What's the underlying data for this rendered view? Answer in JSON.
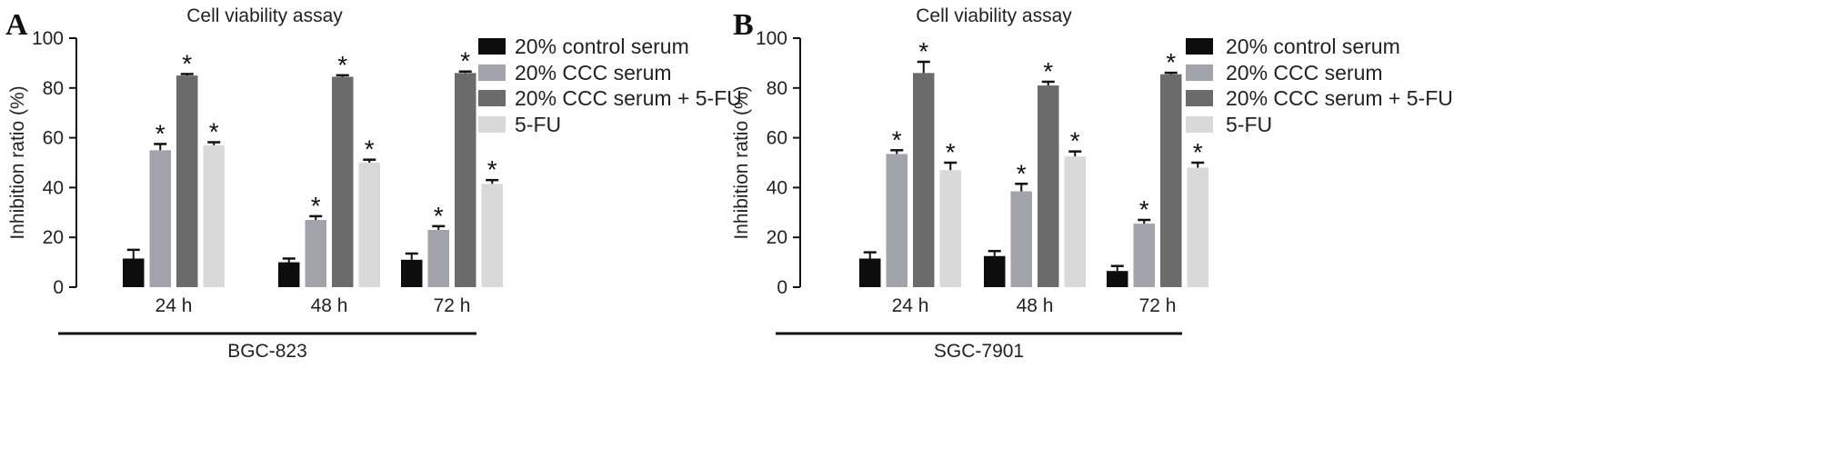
{
  "figure_name": "cell-viability-figure",
  "colors": {
    "20% control serum": "#0d0d0d",
    "20% CCC serum": "#a3a3ab",
    "20% CCC serum + 5-FU": "#6b6b6b",
    "5-FU": "#d9d9d9"
  },
  "chart_data": [
    {
      "type": "bar",
      "panel": "A",
      "title": "Cell viability assay",
      "xlabel": "BGC-823",
      "ylabel": "Inhibition ratio (%)",
      "ylim": [
        0,
        100
      ],
      "yticks": [
        0,
        20,
        40,
        60,
        80,
        100
      ],
      "categories": [
        "24 h",
        "48 h",
        "72 h"
      ],
      "legend_position": "right",
      "series": [
        {
          "name": "20% control serum",
          "values": [
            11.5,
            10,
            11
          ],
          "errors": [
            3.5,
            1.5,
            2.5
          ],
          "significant": [
            false,
            false,
            false
          ]
        },
        {
          "name": "20% CCC serum",
          "values": [
            55,
            27,
            23
          ],
          "errors": [
            2.5,
            1.5,
            1.5
          ],
          "significant": [
            true,
            true,
            true
          ]
        },
        {
          "name": "20% CCC serum + 5-FU",
          "values": [
            85,
            84.5,
            86
          ],
          "errors": [
            0.6,
            0.6,
            0.6
          ],
          "significant": [
            true,
            true,
            true
          ]
        },
        {
          "name": "5-FU",
          "values": [
            57,
            50,
            41.5
          ],
          "errors": [
            1.2,
            1.2,
            1.5
          ],
          "significant": [
            true,
            true,
            true
          ]
        }
      ]
    },
    {
      "type": "bar",
      "panel": "B",
      "title": "Cell viability assay",
      "xlabel": "SGC-7901",
      "ylabel": "Inhibition ratio (%)",
      "ylim": [
        0,
        100
      ],
      "yticks": [
        0,
        20,
        40,
        60,
        80,
        100
      ],
      "categories": [
        "24 h",
        "48 h",
        "72 h"
      ],
      "legend_position": "right",
      "series": [
        {
          "name": "20% control serum",
          "values": [
            11.5,
            12.5,
            6.5
          ],
          "errors": [
            2.5,
            2,
            2
          ],
          "significant": [
            false,
            false,
            false
          ]
        },
        {
          "name": "20% CCC serum",
          "values": [
            53.5,
            38.5,
            25.5
          ],
          "errors": [
            1.5,
            3,
            1.5
          ],
          "significant": [
            true,
            true,
            true
          ]
        },
        {
          "name": "20% CCC serum + 5-FU",
          "values": [
            86,
            81,
            85.5
          ],
          "errors": [
            4.5,
            1.5,
            0.6
          ],
          "significant": [
            true,
            true,
            true
          ]
        },
        {
          "name": "5-FU",
          "values": [
            47,
            52.5,
            48
          ],
          "errors": [
            3,
            2,
            2
          ],
          "significant": [
            true,
            true,
            true
          ]
        }
      ]
    }
  ],
  "significance_marker": "*"
}
